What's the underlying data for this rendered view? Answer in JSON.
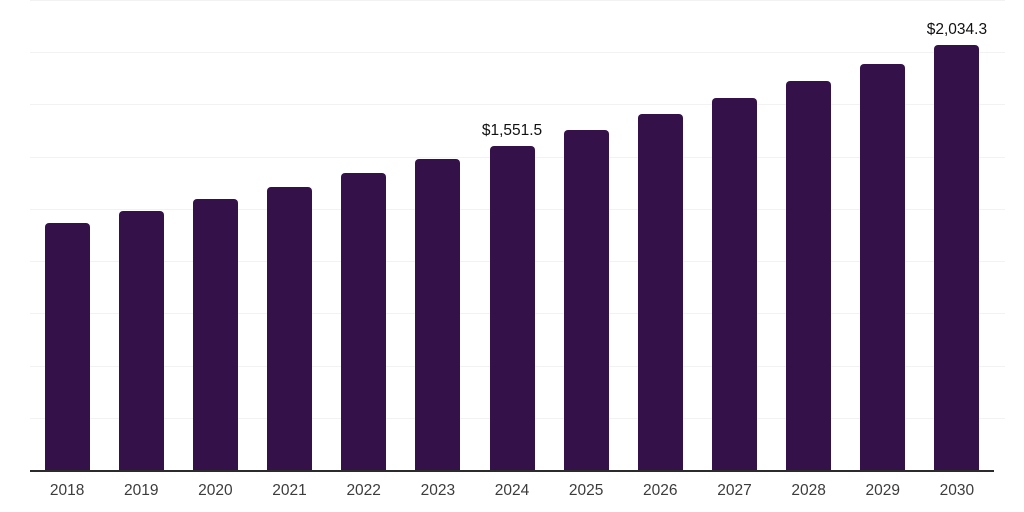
{
  "chart_data": {
    "type": "bar",
    "title": "",
    "xlabel": "",
    "ylabel": "",
    "categories": [
      "2018",
      "2019",
      "2020",
      "2021",
      "2022",
      "2023",
      "2024",
      "2025",
      "2026",
      "2027",
      "2028",
      "2029",
      "2030"
    ],
    "values": [
      1184,
      1239,
      1298,
      1357,
      1420,
      1487,
      1551.5,
      1626,
      1702,
      1783,
      1860,
      1944,
      2034.3
    ],
    "data_labels": [
      "",
      "",
      "",
      "",
      "",
      "",
      "$1,551.5",
      "",
      "",
      "",
      "",
      "",
      "$2,034.3"
    ],
    "ylim": [
      0,
      2250
    ],
    "gridline_step": 250,
    "grid": "horizontal-only",
    "legend_position": "none",
    "y_axis_labels_visible": false,
    "bar_color": "#341249",
    "gridline_color": "#f2f2f2",
    "axis_line_color": "#2b2b2b",
    "tick_label_color": "#3c3c3c",
    "data_label_color": "#111111"
  }
}
